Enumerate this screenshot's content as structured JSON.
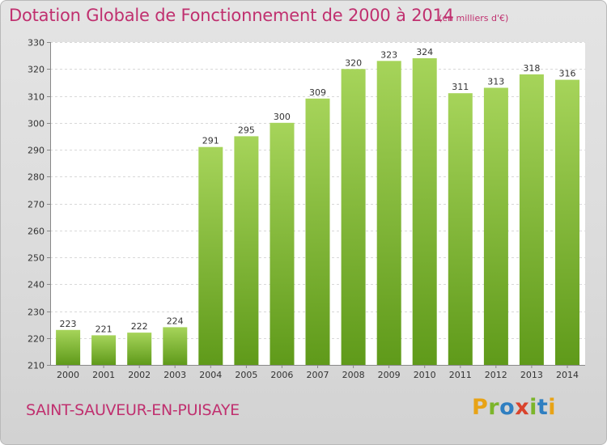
{
  "title": "Dotation Globale de Fonctionnement de 2000 à 2014",
  "unit": "(en milliers d'€)",
  "place": "SAINT-SAUVEUR-EN-PUISAYE",
  "logo": "Proxiti",
  "colors": {
    "title": "#c0306f",
    "bar_top": "#a6d45a",
    "bar_bottom": "#5f9a1a",
    "logo_p": "#e8a316",
    "logo_r": "#7cb52b",
    "logo_o": "#2f7fc1",
    "logo_x": "#d9432c"
  },
  "chart_data": {
    "type": "bar",
    "categories": [
      "2000",
      "2001",
      "2002",
      "2003",
      "2004",
      "2005",
      "2006",
      "2007",
      "2008",
      "2009",
      "2010",
      "2011",
      "2012",
      "2013",
      "2014"
    ],
    "values": [
      223,
      221,
      222,
      224,
      291,
      295,
      300,
      309,
      320,
      323,
      324,
      311,
      313,
      318,
      316
    ],
    "title": "Dotation Globale de Fonctionnement de 2000 à 2014",
    "ylim": [
      210,
      330
    ],
    "yticks": [
      210,
      220,
      230,
      240,
      250,
      260,
      270,
      280,
      290,
      300,
      310,
      320,
      330
    ],
    "grid": true
  }
}
